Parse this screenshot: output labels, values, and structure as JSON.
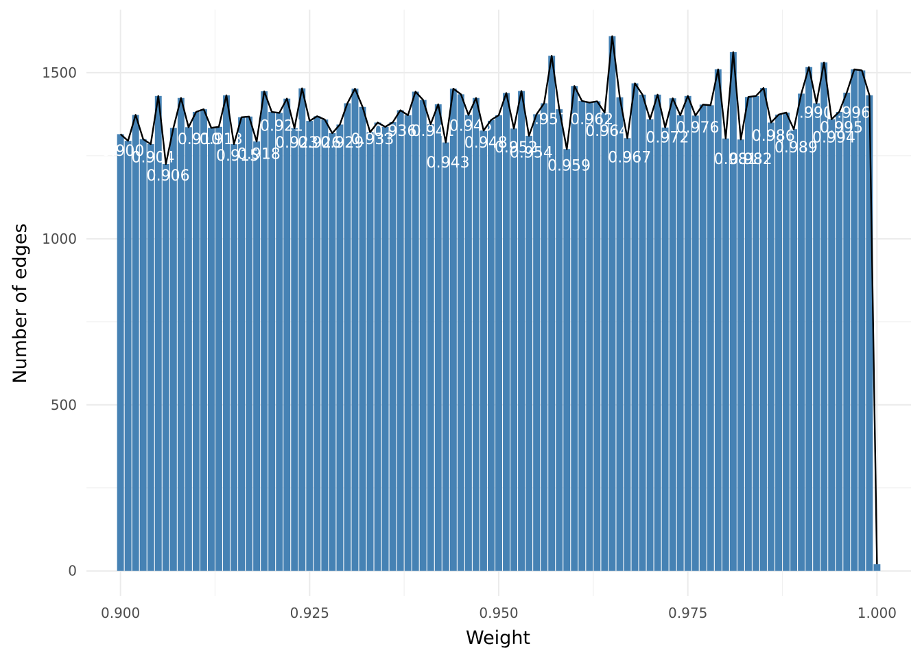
{
  "chart_data": {
    "type": "bar",
    "title": "",
    "xlabel": "Weight",
    "ylabel": "Number of edges",
    "xlim": [
      0.8955,
      1.0045
    ],
    "ylim": [
      -75,
      1690
    ],
    "x_ticks": [
      0.9,
      0.925,
      0.95,
      0.975,
      1.0
    ],
    "x_tick_labels": [
      "0.900",
      "0.925",
      "0.950",
      "0.975",
      "1.000"
    ],
    "y_ticks": [
      0,
      500,
      1000,
      1500
    ],
    "y_tick_labels": [
      "0",
      "500",
      "1000",
      "1500"
    ],
    "grid": true,
    "legend": "none",
    "bar_color": "#4682b4",
    "line_color": "#000000",
    "bar_width": 0.0009,
    "x": [
      0.9,
      0.901,
      0.902,
      0.903,
      0.904,
      0.905,
      0.906,
      0.907,
      0.908,
      0.909,
      0.91,
      0.911,
      0.912,
      0.913,
      0.914,
      0.915,
      0.916,
      0.917,
      0.918,
      0.919,
      0.92,
      0.921,
      0.922,
      0.923,
      0.924,
      0.925,
      0.926,
      0.927,
      0.928,
      0.929,
      0.93,
      0.931,
      0.932,
      0.933,
      0.934,
      0.935,
      0.936,
      0.937,
      0.938,
      0.939,
      0.94,
      0.941,
      0.942,
      0.943,
      0.944,
      0.945,
      0.946,
      0.947,
      0.948,
      0.949,
      0.95,
      0.951,
      0.952,
      0.953,
      0.954,
      0.955,
      0.956,
      0.957,
      0.958,
      0.959,
      0.96,
      0.961,
      0.962,
      0.963,
      0.964,
      0.965,
      0.966,
      0.967,
      0.968,
      0.969,
      0.97,
      0.971,
      0.972,
      0.973,
      0.974,
      0.975,
      0.976,
      0.977,
      0.978,
      0.979,
      0.98,
      0.981,
      0.982,
      0.983,
      0.984,
      0.985,
      0.986,
      0.987,
      0.988,
      0.989,
      0.99,
      0.991,
      0.992,
      0.993,
      0.994,
      0.995,
      0.996,
      0.997,
      0.998,
      0.999,
      1.0
    ],
    "values": [
      1315,
      1295,
      1373,
      1300,
      1285,
      1430,
      1225,
      1334,
      1424,
      1336,
      1382,
      1390,
      1334,
      1337,
      1432,
      1285,
      1366,
      1368,
      1293,
      1444,
      1382,
      1379,
      1422,
      1333,
      1453,
      1355,
      1369,
      1359,
      1318,
      1344,
      1408,
      1452,
      1397,
      1321,
      1350,
      1337,
      1351,
      1387,
      1372,
      1443,
      1418,
      1345,
      1405,
      1290,
      1452,
      1435,
      1373,
      1424,
      1326,
      1358,
      1372,
      1439,
      1332,
      1445,
      1310,
      1375,
      1408,
      1551,
      1390,
      1270,
      1460,
      1415,
      1410,
      1414,
      1380,
      1610,
      1426,
      1303,
      1468,
      1434,
      1360,
      1434,
      1335,
      1423,
      1372,
      1430,
      1371,
      1404,
      1402,
      1510,
      1302,
      1562,
      1299,
      1427,
      1430,
      1454,
      1350,
      1374,
      1380,
      1330,
      1437,
      1517,
      1408,
      1531,
      1360,
      1382,
      1440,
      1510,
      1507,
      1432,
      20
    ],
    "line_values": [
      1315,
      1295,
      1373,
      1300,
      1285,
      1430,
      1225,
      1334,
      1424,
      1336,
      1382,
      1390,
      1334,
      1337,
      1432,
      1285,
      1366,
      1368,
      1293,
      1444,
      1382,
      1379,
      1422,
      1333,
      1453,
      1355,
      1369,
      1359,
      1318,
      1344,
      1408,
      1452,
      1397,
      1321,
      1350,
      1337,
      1351,
      1387,
      1372,
      1443,
      1418,
      1345,
      1405,
      1290,
      1452,
      1435,
      1373,
      1424,
      1326,
      1358,
      1372,
      1439,
      1332,
      1445,
      1310,
      1375,
      1408,
      1551,
      1390,
      1270,
      1460,
      1415,
      1410,
      1414,
      1380,
      1610,
      1426,
      1303,
      1468,
      1434,
      1360,
      1434,
      1335,
      1423,
      1372,
      1430,
      1371,
      1404,
      1402,
      1510,
      1302,
      1562,
      1299,
      1427,
      1430,
      1454,
      1350,
      1374,
      1380,
      1330,
      1437,
      1517,
      1408,
      1531,
      1360,
      1382,
      1440,
      1510,
      1507,
      1432,
      20
    ],
    "annotations": [
      {
        "text": "0.900",
        "x": 0.9003,
        "y": 1250
      },
      {
        "text": "0.904",
        "x": 0.9043,
        "y": 1230
      },
      {
        "text": "0.906",
        "x": 0.9063,
        "y": 1175
      },
      {
        "text": "0.910",
        "x": 0.9104,
        "y": 1285
      },
      {
        "text": "0.913",
        "x": 0.9133,
        "y": 1285
      },
      {
        "text": "0.915",
        "x": 0.9155,
        "y": 1235
      },
      {
        "text": "0.918",
        "x": 0.9183,
        "y": 1240
      },
      {
        "text": "0.921",
        "x": 0.9213,
        "y": 1325
      },
      {
        "text": "0.923",
        "x": 0.9233,
        "y": 1275
      },
      {
        "text": "0.926",
        "x": 0.9263,
        "y": 1275
      },
      {
        "text": "0.929",
        "x": 0.9293,
        "y": 1275
      },
      {
        "text": "0.933",
        "x": 0.9333,
        "y": 1285
      },
      {
        "text": "0.936",
        "x": 0.9363,
        "y": 1310
      },
      {
        "text": "0.941",
        "x": 0.9413,
        "y": 1310
      },
      {
        "text": "0.943",
        "x": 0.9433,
        "y": 1215
      },
      {
        "text": "0.945",
        "x": 0.9463,
        "y": 1325
      },
      {
        "text": "0.948",
        "x": 0.9483,
        "y": 1275
      },
      {
        "text": "0.952",
        "x": 0.9523,
        "y": 1260
      },
      {
        "text": "0.954",
        "x": 0.9543,
        "y": 1245
      },
      {
        "text": "0.957",
        "x": 0.9563,
        "y": 1345
      },
      {
        "text": "0.959",
        "x": 0.9593,
        "y": 1205
      },
      {
        "text": "0.962",
        "x": 0.9623,
        "y": 1345
      },
      {
        "text": "0.964",
        "x": 0.9643,
        "y": 1310
      },
      {
        "text": "0.967",
        "x": 0.9673,
        "y": 1230
      },
      {
        "text": "0.972",
        "x": 0.9723,
        "y": 1290
      },
      {
        "text": "0.976",
        "x": 0.9763,
        "y": 1320
      },
      {
        "text": "0.981",
        "x": 0.9813,
        "y": 1225
      },
      {
        "text": "0.982",
        "x": 0.9833,
        "y": 1225
      },
      {
        "text": "0.986",
        "x": 0.9863,
        "y": 1295
      },
      {
        "text": "0.989",
        "x": 0.9893,
        "y": 1260
      },
      {
        "text": "0.990",
        "x": 0.9913,
        "y": 1365
      },
      {
        "text": "0.994",
        "x": 0.9943,
        "y": 1290
      },
      {
        "text": "0.995",
        "x": 0.9953,
        "y": 1320
      },
      {
        "text": "0.996",
        "x": 0.9963,
        "y": 1365
      }
    ]
  }
}
